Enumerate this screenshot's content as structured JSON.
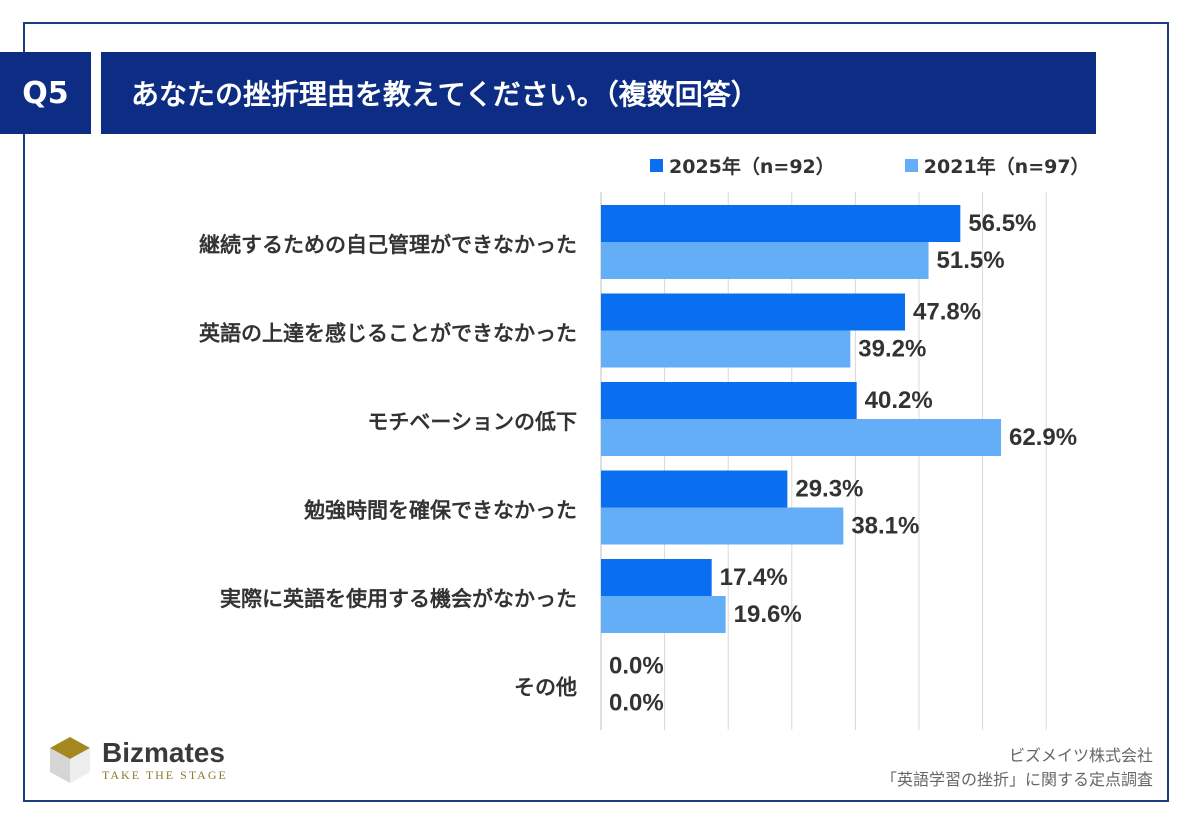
{
  "header": {
    "badge": "Q5",
    "title": "あなたの挫折理由を教えてください。（複数回答）"
  },
  "colors": {
    "navy": "#0d2c84",
    "series_2025": "#0a6ef0",
    "series_2021": "#64aef8"
  },
  "chart_data": {
    "type": "bar",
    "orientation": "horizontal",
    "categories": [
      "継続するための自己管理ができなかった",
      "英語の上達を感じることができなかった",
      "モチベーションの低下",
      "勉強時間を確保できなかった",
      "実際に英語を使用する機会がなかった",
      "その他"
    ],
    "series": [
      {
        "name": "2025年（n=92）",
        "values": [
          56.5,
          47.8,
          40.2,
          29.3,
          17.4,
          0.0
        ]
      },
      {
        "name": "2021年（n=97）",
        "values": [
          51.5,
          39.2,
          62.9,
          38.1,
          19.6,
          0.0
        ]
      }
    ],
    "labels": [
      [
        "56.5%",
        "47.8%",
        "40.2%",
        "29.3%",
        "17.4%",
        "0.0%"
      ],
      [
        "51.5%",
        "39.2%",
        "62.9%",
        "38.1%",
        "19.6%",
        "0.0%"
      ]
    ],
    "xlim": [
      0,
      70
    ],
    "grid": true,
    "legend": "top-right"
  },
  "footer": {
    "logo_name": "Bizmates",
    "logo_tagline": "TAKE THE STAGE",
    "source_line1": "ビズメイツ株式会社",
    "source_line2": "「英語学習の挫折」に関する定点調査"
  }
}
